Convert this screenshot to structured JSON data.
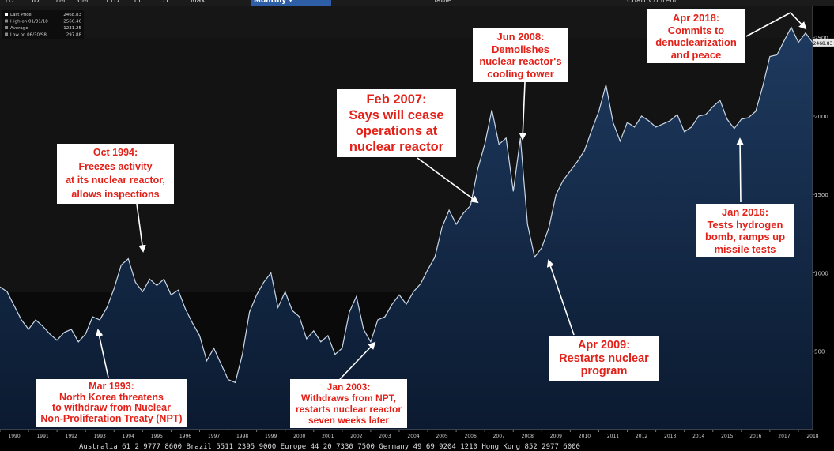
{
  "toolbar": {
    "buttons": [
      "1D",
      "3D",
      "1M",
      "6M",
      "YTD",
      "1Y",
      "5Y",
      "Max"
    ],
    "period": "Monthly",
    "tables": "Table",
    "chart_content": "Chart Content"
  },
  "stats": [
    {
      "label": "Last Price",
      "value": "2468.83"
    },
    {
      "label": "High on 01/31/18",
      "value": "2566.46"
    },
    {
      "label": "Average",
      "value": "1231.25"
    },
    {
      "label": "Low on 06/30/98",
      "value": "297.88"
    }
  ],
  "colors": {
    "line": "#c9d6e6",
    "fill": "#1a3050",
    "annotation_text": "#e32119",
    "annotation_bg": "#ffffff"
  },
  "annotations": [
    {
      "id": "mar1993",
      "lines": [
        "Mar 1993:",
        "North Korea threatens",
        "to withdraw from Nuclear",
        "Non-Proliferation Treaty (NPT)"
      ]
    },
    {
      "id": "oct1994",
      "lines": [
        "Oct 1994:",
        "Freezes activity",
        "at its nuclear reactor,",
        "allows inspections"
      ]
    },
    {
      "id": "jan2003",
      "lines": [
        "Jan 2003:",
        "Withdraws from NPT,",
        "restarts nuclear reactor",
        "seven weeks later"
      ]
    },
    {
      "id": "feb2007",
      "lines": [
        "Feb 2007:",
        "Says will cease",
        "operations at",
        "nuclear reactor"
      ]
    },
    {
      "id": "jun2008",
      "lines": [
        "Jun 2008:",
        "Demolishes",
        "nuclear reactor's",
        "cooling tower"
      ]
    },
    {
      "id": "apr2009",
      "lines": [
        "Apr 2009:",
        "Restarts nuclear",
        "program"
      ]
    },
    {
      "id": "jan2016",
      "lines": [
        "Jan 2016:",
        "Tests hydrogen",
        "bomb, ramps up",
        "missile tests"
      ]
    },
    {
      "id": "apr2018",
      "lines": [
        "Apr 2018:",
        "Commits to",
        "denuclearization",
        "and peace"
      ]
    }
  ],
  "footer": "Australia 61 2 9777 8600 Brazil 5511 2395 9000 Europe 44 20 7330 7500 Germany 49 69 9204 1210 Hong Kong 852 2977 6000",
  "chart_data": {
    "type": "area",
    "title": "",
    "xlabel": "",
    "ylabel": "",
    "x_ticks": [
      "1990",
      "1991",
      "1992",
      "1993",
      "1994",
      "1995",
      "1996",
      "1997",
      "1998",
      "1999",
      "2000",
      "2001",
      "2002",
      "2003",
      "2004",
      "2005",
      "2006",
      "2007",
      "2008",
      "2009",
      "2010",
      "2011",
      "2012",
      "2013",
      "2014",
      "2015",
      "2016",
      "2017",
      "2018"
    ],
    "y_ticks": [
      500,
      1000,
      1500,
      2000,
      2500
    ],
    "xlim": [
      1990.0,
      2018.5
    ],
    "ylim": [
      0,
      2700
    ],
    "last_price": 2468.83,
    "last_price_label": "2468.83",
    "grid": false,
    "series": [
      {
        "x": [
          1990.0,
          1990.25,
          1990.5,
          1990.75,
          1991.0,
          1991.25,
          1991.5,
          1991.75,
          1992.0,
          1992.25,
          1992.5,
          1992.75,
          1993.0,
          1993.25,
          1993.5,
          1993.75,
          1994.0,
          1994.25,
          1994.5,
          1994.75,
          1995.0,
          1995.25,
          1995.5,
          1995.75,
          1996.0,
          1996.25,
          1996.5,
          1996.75,
          1997.0,
          1997.25,
          1997.5,
          1997.75,
          1998.0,
          1998.25,
          1998.5,
          1998.75,
          1999.0,
          1999.25,
          1999.5,
          1999.75,
          2000.0,
          2000.25,
          2000.5,
          2000.75,
          2001.0,
          2001.25,
          2001.5,
          2001.75,
          2002.0,
          2002.25,
          2002.5,
          2002.75,
          2003.0,
          2003.25,
          2003.5,
          2003.75,
          2004.0,
          2004.25,
          2004.5,
          2004.75,
          2005.0,
          2005.25,
          2005.5,
          2005.75,
          2006.0,
          2006.25,
          2006.5,
          2006.75,
          2007.0,
          2007.25,
          2007.5,
          2007.75,
          2008.0,
          2008.25,
          2008.5,
          2008.75,
          2009.0,
          2009.25,
          2009.5,
          2009.75,
          2010.0,
          2010.25,
          2010.5,
          2010.75,
          2011.0,
          2011.25,
          2011.5,
          2011.75,
          2012.0,
          2012.25,
          2012.5,
          2012.75,
          2013.0,
          2013.25,
          2013.5,
          2013.75,
          2014.0,
          2014.25,
          2014.5,
          2014.75,
          2015.0,
          2015.25,
          2015.5,
          2015.75,
          2016.0,
          2016.25,
          2016.5,
          2016.75,
          2017.0,
          2017.25,
          2017.5,
          2017.75,
          2018.0,
          2018.25,
          2018.5
        ],
        "values": [
          910,
          880,
          790,
          700,
          640,
          700,
          660,
          610,
          570,
          620,
          640,
          560,
          610,
          720,
          700,
          780,
          900,
          1050,
          1090,
          940,
          880,
          960,
          920,
          960,
          860,
          890,
          770,
          680,
          600,
          440,
          520,
          420,
          320,
          300,
          480,
          750,
          860,
          940,
          1000,
          780,
          880,
          760,
          720,
          580,
          630,
          560,
          600,
          480,
          520,
          750,
          850,
          640,
          560,
          700,
          720,
          800,
          860,
          800,
          880,
          930,
          1020,
          1100,
          1290,
          1400,
          1310,
          1380,
          1430,
          1660,
          1820,
          2040,
          1820,
          1860,
          1520,
          1860,
          1310,
          1100,
          1160,
          1290,
          1500,
          1590,
          1650,
          1710,
          1780,
          1910,
          2030,
          2200,
          1960,
          1840,
          1960,
          1930,
          2000,
          1970,
          1930,
          1950,
          1970,
          2010,
          1900,
          1930,
          2000,
          2010,
          2060,
          2100,
          1980,
          1920,
          1980,
          1990,
          2030,
          2190,
          2380,
          2390,
          2480,
          2566,
          2470,
          2530,
          2469
        ]
      }
    ]
  }
}
